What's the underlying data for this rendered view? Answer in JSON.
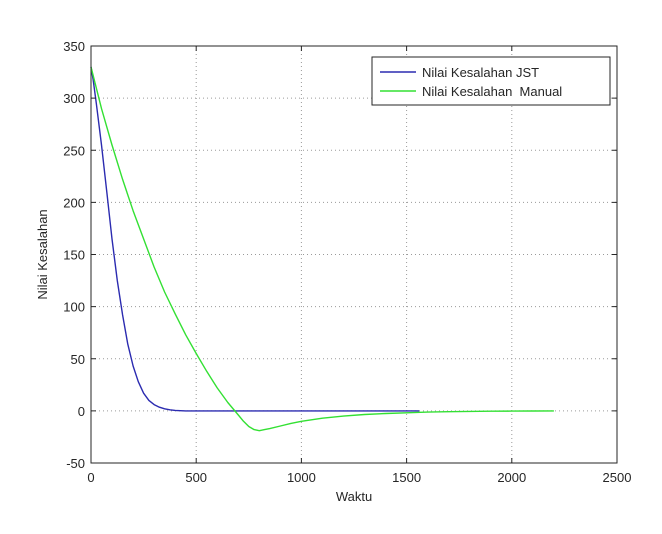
{
  "chart_data": {
    "type": "line",
    "title": "",
    "xlabel": "Waktu",
    "ylabel": "Nilai Kesalahan",
    "xlim": [
      0,
      2500
    ],
    "ylim": [
      -50,
      350
    ],
    "xticks": [
      0,
      500,
      1000,
      1500,
      2000,
      2500
    ],
    "yticks": [
      -50,
      0,
      50,
      100,
      150,
      200,
      250,
      300,
      350
    ],
    "grid": true,
    "legend_position": "top-right",
    "series": [
      {
        "name": "Nilai Kesalahan JST",
        "color": "#2b2bb0",
        "x": [
          0,
          10,
          25,
          50,
          75,
          100,
          125,
          150,
          175,
          200,
          225,
          250,
          275,
          300,
          325,
          350,
          375,
          400,
          450,
          500,
          600,
          800,
          1000,
          1200,
          1400,
          1560
        ],
        "y": [
          330,
          318,
          295,
          255,
          210,
          165,
          125,
          92,
          64,
          43,
          28,
          17,
          10,
          6,
          3.5,
          2,
          1,
          0.5,
          0,
          0,
          0,
          0,
          0,
          0,
          0,
          0
        ]
      },
      {
        "name": "Nilai Kesalahan  Manual",
        "color": "#33e033",
        "x": [
          0,
          50,
          100,
          150,
          200,
          250,
          300,
          350,
          400,
          450,
          500,
          550,
          600,
          650,
          700,
          725,
          750,
          775,
          800,
          825,
          850,
          900,
          950,
          1000,
          1100,
          1200,
          1300,
          1400,
          1500,
          1600,
          1700,
          1800,
          1900,
          2000,
          2100,
          2200
        ],
        "y": [
          330,
          290,
          255,
          222,
          192,
          165,
          138,
          114,
          93,
          73,
          55,
          38,
          22,
          8,
          -4,
          -10,
          -15,
          -18,
          -19,
          -18,
          -17,
          -14.5,
          -12,
          -10,
          -7,
          -5,
          -3.5,
          -2.5,
          -1.8,
          -1.2,
          -0.8,
          -0.5,
          -0.3,
          -0.2,
          -0.1,
          0
        ]
      }
    ]
  }
}
